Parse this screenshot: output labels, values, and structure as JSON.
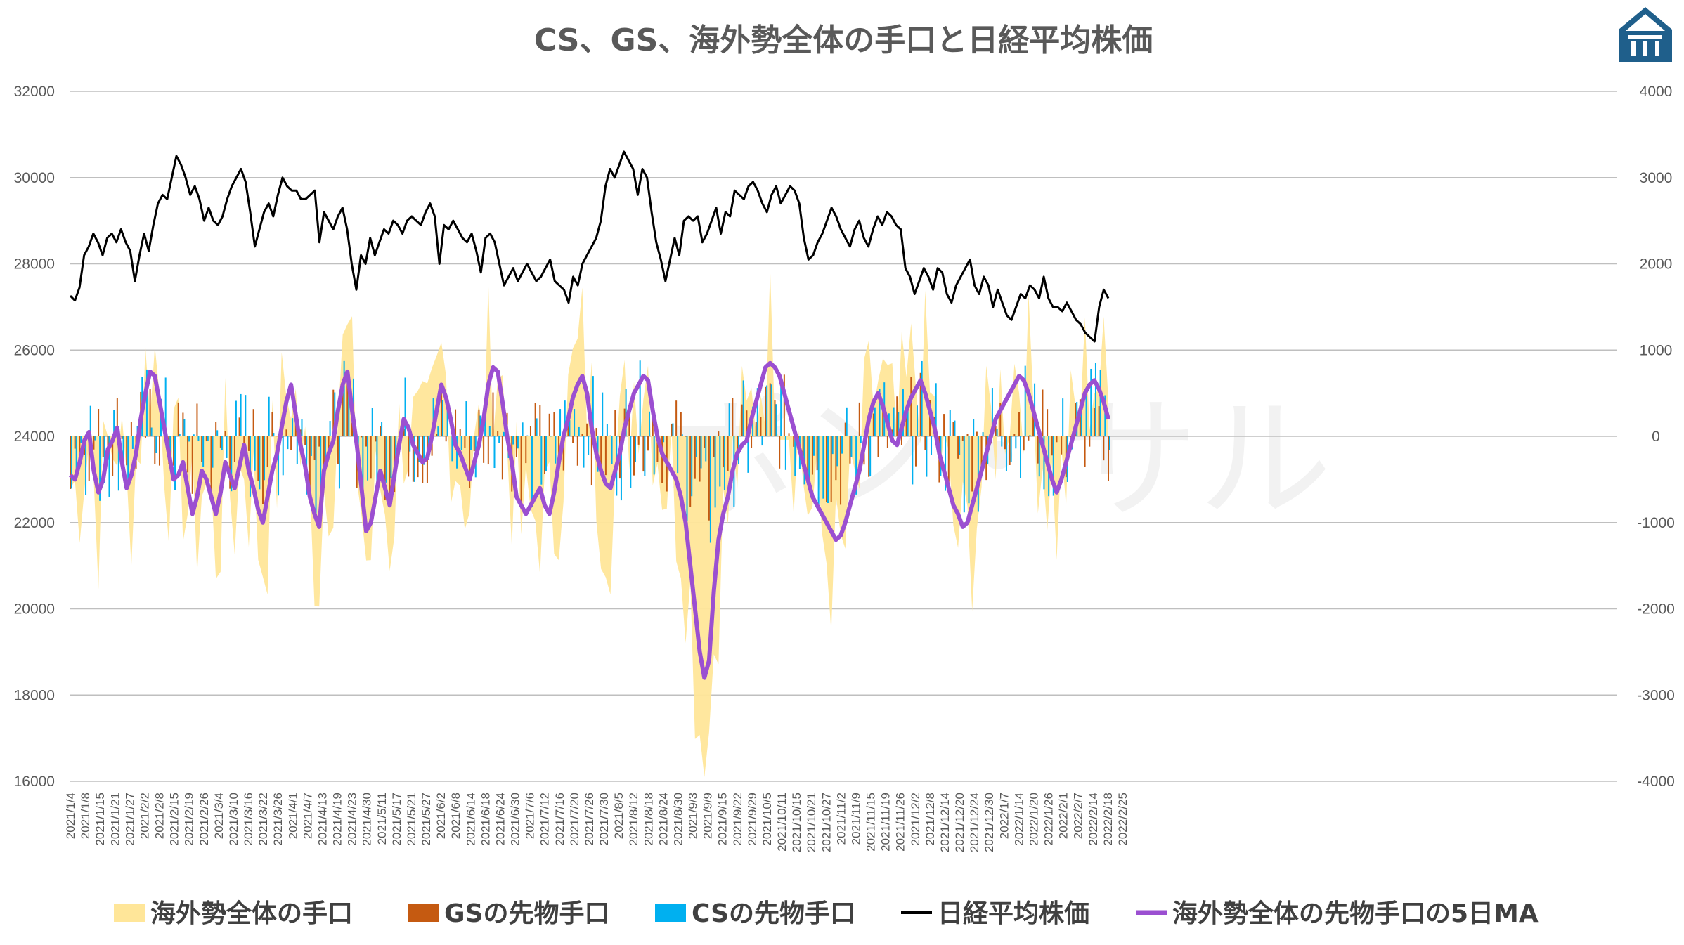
{
  "chart_data": {
    "type": "bar",
    "title": "CS、GS、海外勢全体の手口と日経平均株価",
    "left_axis": {
      "ylim": [
        16000,
        32000
      ],
      "ticks": [
        "32000",
        "30000",
        "28000",
        "26000",
        "24000",
        "22000",
        "20000",
        "18000",
        "16000"
      ]
    },
    "right_axis": {
      "ylim": [
        -4000,
        4000
      ],
      "ticks": [
        "4000",
        "3000",
        "2000",
        "1000",
        "0",
        "-1000",
        "-2000",
        "-3000",
        "-4000"
      ]
    },
    "grid": true,
    "legend_position": "bottom",
    "x_tick_labels": [
      "2021/1/4",
      "2021/1/8",
      "2021/1/15",
      "2021/1/21",
      "2021/1/27",
      "2021/2/2",
      "2021/2/8",
      "2021/2/15",
      "2021/2/19",
      "2021/2/26",
      "2021/3/4",
      "2021/3/10",
      "2021/3/16",
      "2021/3/22",
      "2021/3/26",
      "2021/4/1",
      "2021/4/7",
      "2021/4/13",
      "2021/4/19",
      "2021/4/23",
      "2021/4/30",
      "2021/5/11",
      "2021/5/17",
      "2021/5/21",
      "2021/5/27",
      "2021/6/2",
      "2021/6/8",
      "2021/6/14",
      "2021/6/18",
      "2021/6/24",
      "2021/6/30",
      "2021/7/6",
      "2021/7/12",
      "2021/7/16",
      "2021/7/20",
      "2021/7/26",
      "2021/7/30",
      "2021/8/5",
      "2021/8/12",
      "2021/8/18",
      "2021/8/24",
      "2021/8/30",
      "2021/9/3",
      "2021/9/9",
      "2021/9/15",
      "2021/9/22",
      "2021/9/29",
      "2021/10/5",
      "2021/10/11",
      "2021/10/15",
      "2021/10/21",
      "2021/10/27",
      "2021/11/2",
      "2021/11/9",
      "2021/11/15",
      "2021/11/19",
      "2021/11/26",
      "2021/12/2",
      "2021/12/8",
      "2021/12/14",
      "2021/12/20",
      "2021/12/24",
      "2021/12/30",
      "2022/1/7",
      "2022/1/14",
      "2022/1/20",
      "2022/1/26",
      "2022/2/1",
      "2022/2/7",
      "2022/2/14",
      "2022/2/18",
      "2022/2/25"
    ],
    "legend": [
      {
        "name": "海外勢全体の手口",
        "color": "#ffe699"
      },
      {
        "name": "GSの先物手口",
        "color": "#c55a11"
      },
      {
        "name": "CSの先物手口",
        "color": "#00b0f0"
      },
      {
        "name": "日経平均株価",
        "color": "#000000"
      },
      {
        "name": "海外勢全体の先物手口の5日MA",
        "color": "#9b4fd1"
      }
    ],
    "series": [
      {
        "name": "日経平均株価",
        "axis": "left",
        "kind": "line",
        "color": "#000000",
        "values": [
          27258,
          27150,
          27450,
          28200,
          28400,
          28700,
          28500,
          28200,
          28600,
          28700,
          28500,
          28800,
          28500,
          28300,
          27600,
          28200,
          28700,
          28300,
          28900,
          29400,
          29600,
          29500,
          30000,
          30500,
          30300,
          30000,
          29600,
          29800,
          29500,
          29000,
          29300,
          29000,
          28900,
          29100,
          29500,
          29800,
          30000,
          30200,
          29900,
          29200,
          28400,
          28800,
          29200,
          29400,
          29100,
          29600,
          30000,
          29800,
          29700,
          29700,
          29500,
          29500,
          29600,
          29700,
          28500,
          29200,
          29000,
          28800,
          29100,
          29300,
          28800,
          28000,
          27400,
          28200,
          28000,
          28600,
          28200,
          28500,
          28800,
          28700,
          29000,
          28900,
          28700,
          29000,
          29100,
          29000,
          28900,
          29200,
          29400,
          29100,
          28000,
          28900,
          28800,
          29000,
          28800,
          28600,
          28500,
          28700,
          28300,
          27800,
          28600,
          28700,
          28500,
          28000,
          27500,
          27700,
          27900,
          27600,
          27800,
          28000,
          27800,
          27600,
          27700,
          27900,
          28100,
          27600,
          27500,
          27400,
          27100,
          27700,
          27500,
          28000,
          28200,
          28400,
          28600,
          29000,
          29800,
          30200,
          30000,
          30300,
          30600,
          30400,
          30200,
          29600,
          30200,
          30000,
          29200,
          28500,
          28100,
          27600,
          28100,
          28600,
          28200,
          29000,
          29100,
          29000,
          29100,
          28500,
          28700,
          29000,
          29300,
          28700,
          29200,
          29100,
          29700,
          29600,
          29500,
          29800,
          29900,
          29700,
          29400,
          29200,
          29600,
          29800,
          29400,
          29600,
          29800,
          29700,
          29400,
          28600,
          28100,
          28200,
          28500,
          28700,
          29000,
          29300,
          29100,
          28800,
          28600,
          28400,
          28800,
          29000,
          28600,
          28400,
          28800,
          29100,
          28900,
          29200,
          29100,
          28900,
          28800,
          27900,
          27700,
          27300,
          27600,
          27900,
          27700,
          27400,
          27900,
          27800,
          27300,
          27100,
          27500,
          27700,
          27900,
          28100,
          27500,
          27300,
          27700,
          27500,
          27000,
          27400,
          27100,
          26800,
          26700,
          27000,
          27300,
          27200,
          27500,
          27400,
          27200,
          27700,
          27200,
          27000,
          27000,
          26900,
          27100,
          26900,
          26700,
          26600,
          26400,
          26300,
          26200,
          27000,
          27400,
          27200
        ]
      },
      {
        "name": "海外勢全体の先物手口の5日MA",
        "axis": "right",
        "kind": "line",
        "color": "#9b4fd1",
        "values": [
          -450,
          -500,
          -300,
          -50,
          50,
          -400,
          -650,
          -500,
          -150,
          -50,
          100,
          -300,
          -600,
          -450,
          -200,
          200,
          500,
          750,
          700,
          400,
          100,
          -200,
          -500,
          -450,
          -300,
          -600,
          -900,
          -700,
          -400,
          -500,
          -700,
          -900,
          -650,
          -300,
          -450,
          -600,
          -350,
          -100,
          -400,
          -600,
          -850,
          -1000,
          -700,
          -400,
          -200,
          100,
          400,
          600,
          250,
          -100,
          -350,
          -700,
          -900,
          -1050,
          -400,
          -200,
          -50,
          300,
          600,
          750,
          300,
          -100,
          -600,
          -1100,
          -1000,
          -700,
          -400,
          -600,
          -800,
          -450,
          -100,
          200,
          100,
          -100,
          -200,
          -300,
          -250,
          0,
          300,
          600,
          450,
          200,
          -100,
          -200,
          -350,
          -500,
          -300,
          -100,
          200,
          600,
          800,
          750,
          400,
          0,
          -300,
          -700,
          -800,
          -900,
          -800,
          -700,
          -600,
          -800,
          -900,
          -650,
          -300,
          0,
          200,
          450,
          600,
          700,
          500,
          100,
          -200,
          -400,
          -550,
          -600,
          -400,
          -200,
          100,
          300,
          500,
          600,
          700,
          650,
          300,
          0,
          -200,
          -300,
          -400,
          -500,
          -700,
          -1000,
          -1500,
          -2000,
          -2500,
          -2800,
          -2600,
          -1800,
          -1200,
          -900,
          -700,
          -400,
          -200,
          -100,
          -50,
          200,
          400,
          600,
          800,
          850,
          800,
          700,
          500,
          300,
          100,
          -100,
          -300,
          -500,
          -700,
          -800,
          -900,
          -1000,
          -1100,
          -1200,
          -1150,
          -1000,
          -800,
          -600,
          -400,
          -100,
          200,
          400,
          500,
          350,
          150,
          -50,
          -100,
          100,
          300,
          450,
          550,
          650,
          500,
          300,
          100,
          -200,
          -400,
          -600,
          -800,
          -900,
          -1050,
          -1000,
          -800,
          -600,
          -400,
          -200,
          0,
          200,
          300,
          400,
          500,
          600,
          700,
          650,
          500,
          300,
          100,
          -100,
          -300,
          -500,
          -650,
          -500,
          -300,
          -100,
          100,
          300,
          500,
          600,
          650,
          550,
          400,
          200
        ]
      }
    ],
    "bar_series": [
      {
        "name": "海外勢全体の手口",
        "color": "#ffe699",
        "axis": "right",
        "note": "daily values, range approx -4000 to 2000"
      },
      {
        "name": "GSの先物手口",
        "color": "#c55a11",
        "axis": "right",
        "note": "daily values, range approx -1300 to 1000"
      },
      {
        "name": "CSの先物手口",
        "color": "#00b0f0",
        "axis": "right",
        "note": "daily values, range approx -1800 to 1200"
      }
    ]
  },
  "watermark": "ポン・サル",
  "logo": {
    "icon": "building-logo-icon",
    "color": "#1f5f8b"
  }
}
